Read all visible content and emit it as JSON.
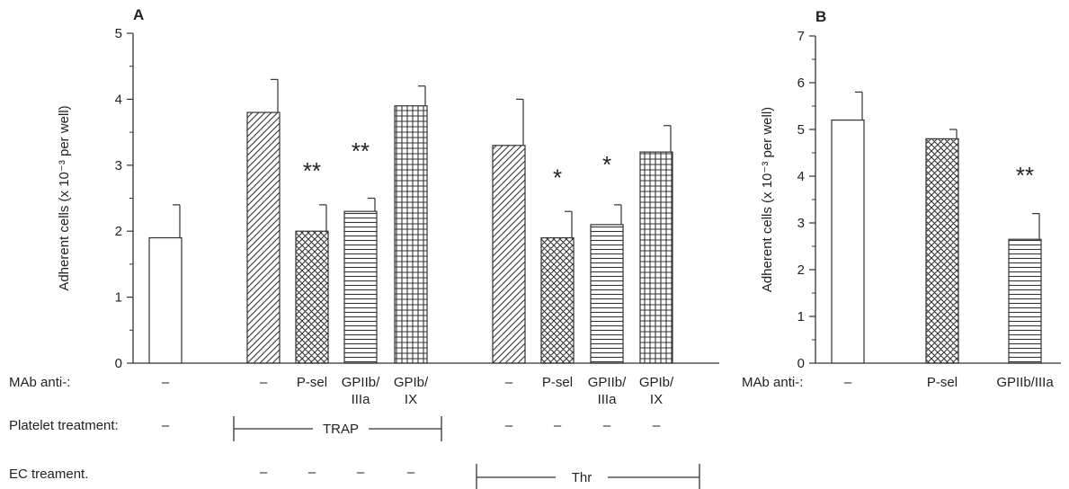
{
  "chart_data": [
    {
      "panel": "A",
      "type": "bar",
      "ylabel": "Adherent cells (x 10⁻³ per well)",
      "ylim": [
        0,
        5
      ],
      "yticks": [
        "0",
        "1",
        "2",
        "3",
        "4",
        "5"
      ],
      "row_labels": {
        "mab": "MAb anti-:",
        "platelet": "Platelet treatment:",
        "ec": "EC treament."
      },
      "bars": [
        {
          "label": [
            "–"
          ],
          "value": 1.9,
          "error": 0.5,
          "pattern": "open",
          "sig": ""
        },
        {
          "label": [
            "–"
          ],
          "value": 3.8,
          "error": 0.5,
          "pattern": "diagonal",
          "sig": ""
        },
        {
          "label": [
            "P-sel"
          ],
          "value": 2.0,
          "error": 0.4,
          "pattern": "crosshatch",
          "sig": "**"
        },
        {
          "label": [
            "GPIIb/",
            "IIIa"
          ],
          "value": 2.3,
          "error": 0.2,
          "pattern": "horizontal",
          "sig": "**"
        },
        {
          "label": [
            "GPIb/",
            "IX"
          ],
          "value": 3.9,
          "error": 0.3,
          "pattern": "grid",
          "sig": ""
        },
        {
          "label": [
            "–"
          ],
          "value": 3.3,
          "error": 0.7,
          "pattern": "diagonal",
          "sig": ""
        },
        {
          "label": [
            "P-sel"
          ],
          "value": 1.9,
          "error": 0.4,
          "pattern": "crosshatch",
          "sig": "*"
        },
        {
          "label": [
            "GPIIb/",
            "IIIa"
          ],
          "value": 2.1,
          "error": 0.3,
          "pattern": "horizontal",
          "sig": "*"
        },
        {
          "label": [
            "GPIb/",
            "IX"
          ],
          "value": 3.2,
          "error": 0.4,
          "pattern": "grid",
          "sig": ""
        }
      ],
      "platelet_treatment": {
        "first": "–",
        "group_label": "TRAP",
        "thr_group": [
          "–",
          "–",
          "–",
          "–"
        ]
      },
      "ec_treatment": {
        "trap_group": [
          "–",
          "–",
          "–",
          "–"
        ],
        "group_label": "Thr"
      }
    },
    {
      "panel": "B",
      "type": "bar",
      "ylabel": "Adherent cells (x 10⁻³ per well)",
      "ylim": [
        0,
        7
      ],
      "yticks": [
        "0",
        "1",
        "2",
        "3",
        "4",
        "5",
        "6",
        "7"
      ],
      "row_labels": {
        "mab": "MAb anti-:"
      },
      "bars": [
        {
          "label": [
            "–"
          ],
          "value": 5.2,
          "error": 0.6,
          "pattern": "open",
          "sig": ""
        },
        {
          "label": [
            "P-sel"
          ],
          "value": 4.8,
          "error": 0.2,
          "pattern": "crosshatch",
          "sig": ""
        },
        {
          "label": [
            "GPIIb/IIIa"
          ],
          "value": 2.65,
          "error": 0.55,
          "pattern": "horizontal",
          "sig": "**"
        }
      ]
    }
  ]
}
